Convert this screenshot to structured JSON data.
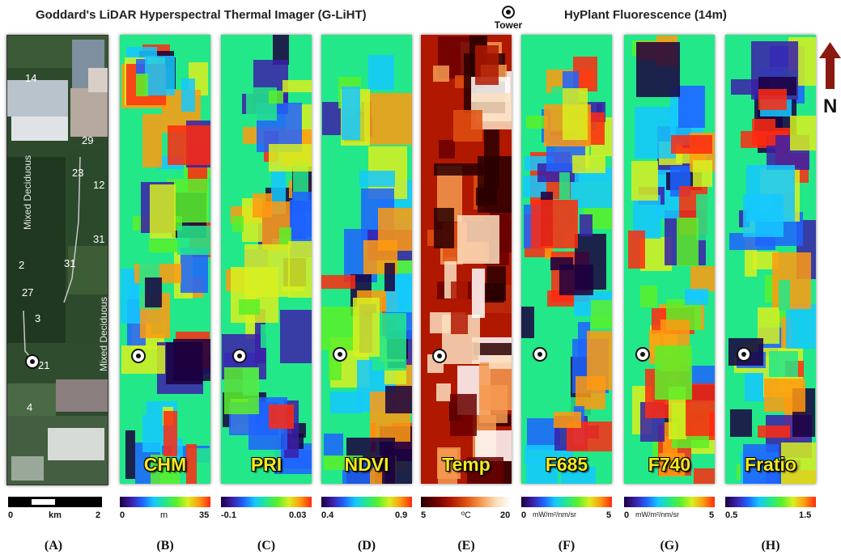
{
  "header": {
    "glihht_title": "Goddard's LiDAR Hyperspectral Thermal Imager (G-LiHT)",
    "tower_label": "Tower",
    "hyplant_title": "HyPlant Fluorescence (14m)"
  },
  "north_label": "N",
  "map_panel": {
    "plot_numbers": [
      "14",
      "29",
      "23",
      "12",
      "31",
      "31",
      "2",
      "27",
      "3",
      "21",
      "4"
    ],
    "vegetation_labels": [
      "Mixed Deciduous",
      "Mixed Deciduous"
    ]
  },
  "scalebar": {
    "min": "0",
    "unit": "km",
    "max": "2"
  },
  "panels": [
    {
      "label": "CHM",
      "cb_min": "0",
      "cb_unit": "m",
      "cb_max": "35",
      "sub": "(B)"
    },
    {
      "label": "PRI",
      "cb_min": "-0.1",
      "cb_unit": "",
      "cb_max": "0.03",
      "sub": "(C)"
    },
    {
      "label": "NDVI",
      "cb_min": "0.4",
      "cb_unit": "",
      "cb_max": "0.9",
      "sub": "(D)"
    },
    {
      "label": "Temp",
      "cb_min": "5",
      "cb_unit": "ºC",
      "cb_max": "20",
      "sub": "(E)"
    },
    {
      "label": "F685",
      "cb_min": "0",
      "cb_unit": "mW/m²/nm/sr",
      "cb_max": "5",
      "sub": "(F)"
    },
    {
      "label": "F740",
      "cb_min": "0",
      "cb_unit": "mW/m²/nm/sr",
      "cb_max": "5",
      "sub": "(G)"
    },
    {
      "label": "Fratio",
      "cb_min": "0.5",
      "cb_unit": "",
      "cb_max": "1.5",
      "sub": "(H)"
    }
  ],
  "map_sub": "(A)",
  "colors": {
    "rainbow": [
      "#1a0040",
      "#3b1fa8",
      "#1f63ff",
      "#15c8ff",
      "#22e88a",
      "#5af02a",
      "#d8f020",
      "#ff9a10",
      "#ff2a10"
    ],
    "temp": [
      "#2a0000",
      "#6a0000",
      "#b01800",
      "#e05010",
      "#f59a50",
      "#fbe0c0",
      "#ffffff"
    ],
    "label_yellow": "#f4e81e"
  }
}
